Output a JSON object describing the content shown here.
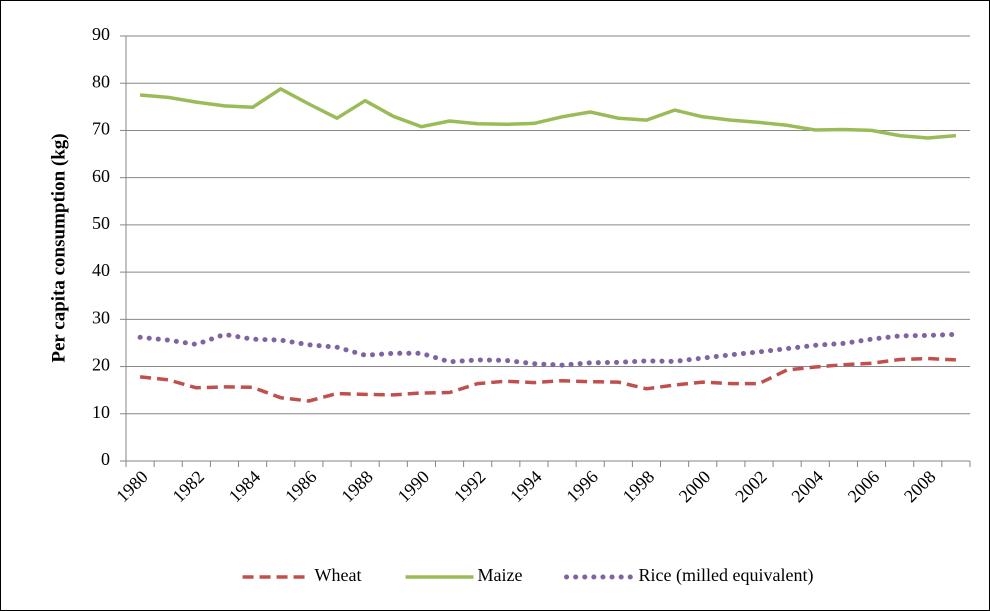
{
  "chart_data": {
    "type": "line",
    "y_label": "Per capita consumption (kg)",
    "categories": [
      "1980",
      null,
      "1982",
      null,
      "1984",
      null,
      "1986",
      null,
      "1988",
      null,
      "1990",
      null,
      "1992",
      null,
      "1994",
      null,
      "1996",
      null,
      "1998",
      null,
      "2000",
      null,
      "2002",
      null,
      "2004",
      null,
      "2006",
      null,
      "2008",
      null
    ],
    "series": [
      {
        "name": "Wheat",
        "color": "#c0504d",
        "line_style": "dashed",
        "values": [
          17.8,
          17.2,
          15.5,
          15.7,
          15.6,
          13.4,
          12.7,
          14.3,
          14.1,
          14.0,
          14.4,
          14.5,
          16.4,
          16.9,
          16.6,
          17.0,
          16.8,
          16.7,
          15.3,
          16.1,
          16.7,
          16.4,
          16.4,
          19.3,
          19.9,
          20.4,
          20.7,
          21.5,
          21.7,
          21.4
        ]
      },
      {
        "name": "Maize",
        "color": "#9bbb59",
        "line_style": "solid",
        "values": [
          77.5,
          77.0,
          76.0,
          75.2,
          74.9,
          78.8,
          75.6,
          72.6,
          76.3,
          73.0,
          70.8,
          72.0,
          71.4,
          71.3,
          71.5,
          72.9,
          73.9,
          72.6,
          72.2,
          74.3,
          72.9,
          72.2,
          71.7,
          71.1,
          70.1,
          70.2,
          70.0,
          68.9,
          68.4,
          68.9
        ]
      },
      {
        "name": "Rice (milled equivalent)",
        "color": "#8064a2",
        "line_style": "dotted",
        "values": [
          26.2,
          25.6,
          24.7,
          26.8,
          25.8,
          25.6,
          24.6,
          24.1,
          22.4,
          22.8,
          22.8,
          21.0,
          21.4,
          21.3,
          20.6,
          20.3,
          20.8,
          20.9,
          21.2,
          21.1,
          21.8,
          22.5,
          23.1,
          23.8,
          24.5,
          24.9,
          25.8,
          26.5,
          26.6,
          26.8
        ]
      }
    ],
    "ylim": [
      0,
      90
    ],
    "yticks": [
      0,
      10,
      20,
      30,
      40,
      50,
      60,
      70,
      80,
      90
    ],
    "grid": true,
    "legend": "bottom"
  }
}
